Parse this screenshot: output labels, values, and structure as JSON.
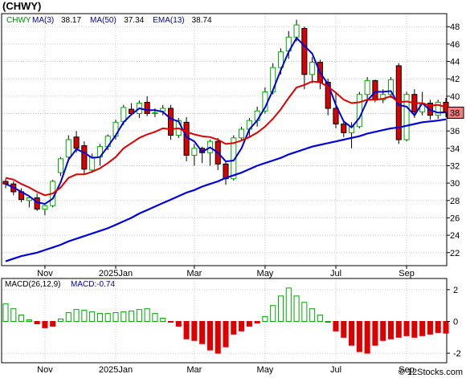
{
  "title": "(CHWY)",
  "watermark": "© 12Stocks.com",
  "legend": {
    "ma3_label": "MA(3)",
    "ma3_value": "38.17",
    "ma50_label": "MA(50)",
    "ma50_value": "37.34",
    "ema13_label": "EMA(13)",
    "ema13_value": "38.74"
  },
  "macd_legend": {
    "macd_label": "MACD(26,12,9)",
    "macd_value": "MACD:-0.74"
  },
  "last_price_tag": "38",
  "colors": {
    "up": "#00aa00",
    "down": "#dd0000",
    "ma3": "#0000dd",
    "ema13": "#dd0000",
    "ma50": "#0000dd",
    "grid": "#c8c8c8",
    "label_blue": "#0000aa",
    "tag": "#f08080"
  },
  "chart_data": [
    {
      "type": "candlestick",
      "ylim": [
        20.5,
        49.5
      ],
      "yticks": [
        22,
        24,
        26,
        28,
        30,
        32,
        34,
        36,
        38,
        40,
        42,
        44,
        46,
        48
      ],
      "xlabels": [
        "Nov",
        "2025Jan",
        "Mar",
        "May",
        "Jul",
        "Sep"
      ],
      "xlabel_index": [
        5,
        14,
        24,
        33,
        42,
        51
      ],
      "grid": true,
      "candles": [
        [
          30.2,
          30.5,
          29.4,
          29.9
        ],
        [
          29.9,
          30.2,
          28.6,
          29.0
        ],
        [
          29.0,
          29.4,
          27.8,
          28.1
        ],
        [
          28.0,
          28.5,
          27.2,
          28.3
        ],
        [
          28.3,
          28.8,
          26.8,
          27.0
        ],
        [
          27.0,
          27.5,
          26.3,
          27.4
        ],
        [
          27.4,
          30.4,
          27.2,
          30.2
        ],
        [
          31.2,
          33.0,
          30.8,
          32.8
        ],
        [
          33.0,
          35.5,
          32.5,
          35.0
        ],
        [
          35.3,
          36.0,
          33.5,
          34.0
        ],
        [
          34.3,
          34.8,
          31.0,
          31.6
        ],
        [
          31.5,
          33.4,
          31.2,
          33.0
        ],
        [
          33.0,
          34.5,
          32.0,
          34.2
        ],
        [
          34.2,
          35.6,
          33.8,
          35.4
        ],
        [
          35.4,
          37.3,
          35.0,
          37.0
        ],
        [
          37.1,
          39.0,
          36.7,
          38.7
        ],
        [
          38.5,
          39.2,
          37.8,
          38.0
        ],
        [
          38.0,
          39.5,
          37.5,
          39.2
        ],
        [
          39.3,
          40.0,
          37.7,
          38.0
        ],
        [
          38.0,
          38.6,
          37.6,
          38.1
        ],
        [
          38.3,
          39.0,
          37.8,
          38.6
        ],
        [
          38.6,
          39.0,
          35.0,
          35.5
        ],
        [
          35.5,
          37.5,
          35.2,
          37.2
        ],
        [
          37.0,
          37.6,
          32.5,
          33.2
        ],
        [
          33.2,
          34.5,
          32.0,
          34.0
        ],
        [
          34.0,
          34.2,
          32.3,
          33.5
        ],
        [
          33.5,
          35.0,
          32.0,
          34.8
        ],
        [
          34.8,
          35.2,
          31.5,
          32.2
        ],
        [
          32.2,
          32.5,
          29.8,
          30.5
        ],
        [
          30.5,
          35.5,
          30.3,
          35.2
        ],
        [
          35.2,
          36.5,
          35.0,
          36.2
        ],
        [
          36.2,
          37.5,
          35.2,
          37.2
        ],
        [
          37.2,
          38.8,
          36.5,
          38.3
        ],
        [
          38.3,
          41.0,
          38.0,
          40.5
        ],
        [
          40.5,
          43.8,
          40.2,
          43.3
        ],
        [
          43.3,
          45.5,
          42.5,
          45.1
        ],
        [
          45.2,
          47.5,
          44.3,
          46.8
        ],
        [
          46.8,
          48.8,
          46.3,
          48.2
        ],
        [
          47.8,
          48.0,
          40.8,
          42.5
        ],
        [
          42.5,
          44.5,
          41.5,
          43.9
        ],
        [
          43.9,
          44.2,
          40.8,
          41.6
        ],
        [
          41.6,
          42.0,
          37.8,
          38.6
        ],
        [
          38.6,
          40.5,
          36.3,
          36.8
        ],
        [
          36.8,
          37.2,
          35.3,
          35.8
        ],
        [
          35.8,
          37.0,
          34.0,
          36.5
        ],
        [
          36.5,
          40.5,
          36.3,
          40.2
        ],
        [
          40.2,
          42.2,
          39.5,
          41.8
        ],
        [
          41.8,
          41.9,
          39.3,
          39.6
        ],
        [
          39.6,
          40.8,
          39.2,
          40.2
        ],
        [
          40.2,
          42.2,
          39.8,
          41.9
        ],
        [
          43.5,
          43.8,
          34.5,
          35.0
        ],
        [
          35.0,
          40.5,
          34.8,
          40.2
        ],
        [
          40.2,
          40.8,
          37.5,
          38.2
        ],
        [
          38.2,
          40.5,
          37.8,
          39.2
        ],
        [
          39.2,
          39.6,
          37.3,
          37.8
        ],
        [
          37.8,
          39.6,
          37.4,
          39.3
        ],
        [
          39.3,
          39.8,
          37.6,
          38.1
        ]
      ],
      "series": [
        {
          "name": "MA(3)",
          "values": [
            29.9,
            29.5,
            29.0,
            28.5,
            27.8,
            27.6,
            28.2,
            30.1,
            32.7,
            33.9,
            33.5,
            32.9,
            33.0,
            34.2,
            35.5,
            37.0,
            37.9,
            38.6,
            38.4,
            38.4,
            38.2,
            37.4,
            37.1,
            35.3,
            34.8,
            33.6,
            34.1,
            33.5,
            32.5,
            32.6,
            34.0,
            36.2,
            37.2,
            38.7,
            40.7,
            43.0,
            45.1,
            46.7,
            45.8,
            44.9,
            42.7,
            41.4,
            39.0,
            37.1,
            36.4,
            37.5,
            39.5,
            40.5,
            40.5,
            40.6,
            39.0,
            38.8,
            37.8,
            39.2,
            38.4,
            38.1,
            38.17
          ]
        },
        {
          "name": "EMA(13)",
          "values": [
            30.6,
            30.4,
            29.9,
            29.5,
            29.0,
            28.6,
            28.8,
            29.5,
            30.6,
            31.0,
            31.0,
            31.3,
            31.7,
            32.3,
            33.0,
            34.0,
            34.6,
            35.2,
            35.6,
            35.9,
            36.3,
            36.2,
            36.3,
            35.9,
            35.6,
            35.4,
            35.3,
            35.0,
            34.5,
            34.6,
            34.9,
            35.3,
            35.8,
            36.5,
            37.4,
            38.5,
            39.8,
            41.0,
            41.3,
            41.7,
            41.6,
            41.1,
            40.4,
            39.6,
            39.2,
            39.3,
            39.6,
            39.6,
            39.7,
            40.0,
            39.3,
            39.4,
            39.2,
            39.2,
            38.9,
            39.0,
            38.74
          ]
        },
        {
          "name": "MA(50)",
          "values": [
            21.0,
            21.3,
            21.6,
            21.8,
            22.0,
            22.3,
            22.6,
            22.9,
            23.3,
            23.6,
            23.9,
            24.2,
            24.5,
            24.8,
            25.2,
            25.6,
            26.0,
            26.5,
            26.9,
            27.3,
            27.7,
            28.1,
            28.5,
            28.9,
            29.2,
            29.6,
            29.9,
            30.2,
            30.6,
            30.9,
            31.2,
            31.6,
            32.0,
            32.3,
            32.6,
            32.9,
            33.3,
            33.6,
            33.9,
            34.2,
            34.4,
            34.6,
            34.8,
            35.0,
            35.2,
            35.4,
            35.7,
            35.9,
            36.1,
            36.3,
            36.4,
            36.6,
            36.8,
            37.0,
            37.1,
            37.2,
            37.34
          ]
        }
      ]
    },
    {
      "type": "bar",
      "name": "MACD(26,12,9)",
      "ylim": [
        -2.6,
        2.7
      ],
      "yticks": [
        -2,
        0,
        2
      ],
      "values": [
        1.1,
        0.8,
        0.4,
        0.1,
        -0.15,
        -0.4,
        -0.3,
        0.15,
        0.55,
        0.75,
        0.7,
        0.6,
        0.5,
        0.5,
        0.55,
        0.6,
        0.65,
        0.75,
        0.8,
        0.5,
        0.2,
        -0.05,
        -0.3,
        -1.1,
        -1.2,
        -1.4,
        -1.8,
        -2.0,
        -1.6,
        -0.8,
        -0.6,
        -0.3,
        -0.1,
        0.3,
        1.0,
        1.6,
        2.1,
        1.6,
        1.2,
        0.8,
        0.4,
        0.0,
        -0.6,
        -1.0,
        -1.5,
        -1.9,
        -2.0,
        -1.5,
        -1.2,
        -1.1,
        -1.0,
        -0.9,
        -1.0,
        -0.9,
        -0.8,
        -0.7,
        -0.74
      ]
    }
  ]
}
